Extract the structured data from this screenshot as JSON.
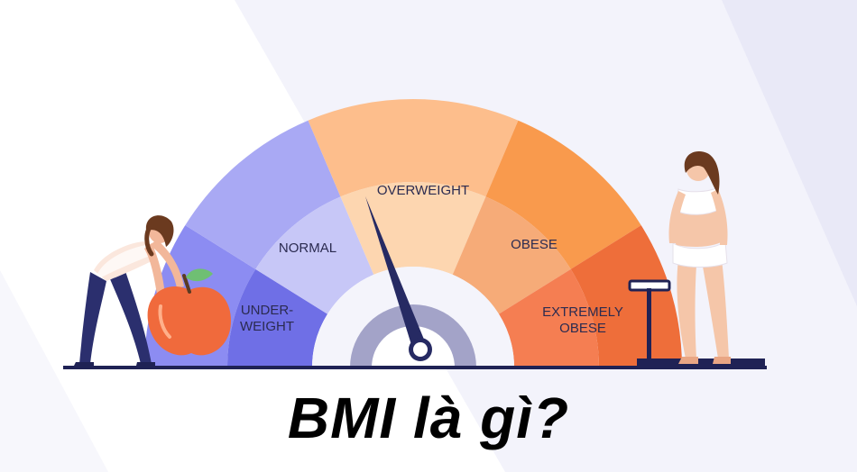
{
  "gauge": {
    "categories": [
      {
        "label_lines": [
          "UNDER-",
          "WEIGHT"
        ]
      },
      {
        "label_lines": [
          "NORMAL"
        ]
      },
      {
        "label_lines": [
          "OVERWEIGHT"
        ]
      },
      {
        "label_lines": [
          "OBESE"
        ]
      },
      {
        "label_lines": [
          "EXTREMELY",
          "OBESE"
        ]
      }
    ],
    "needle_category": "OVERWEIGHT"
  },
  "colors": {
    "underweight_outer": "#8c8cf2",
    "underweight_inner": "#6f6fe6",
    "normal_outer": "#a9a9f4",
    "normal_inner": "#c7c7f7",
    "overweight_outer": "#fdbe8c",
    "overweight_inner": "#fdd6b0",
    "obese_outer": "#f99a4d",
    "obese_inner": "#f6ab78",
    "extreme_outer": "#ee6e3a",
    "extreme_inner": "#f57e52",
    "needle": "#262a63",
    "hub_ring": "#a3a3c8"
  },
  "title": "BMI là gì?"
}
